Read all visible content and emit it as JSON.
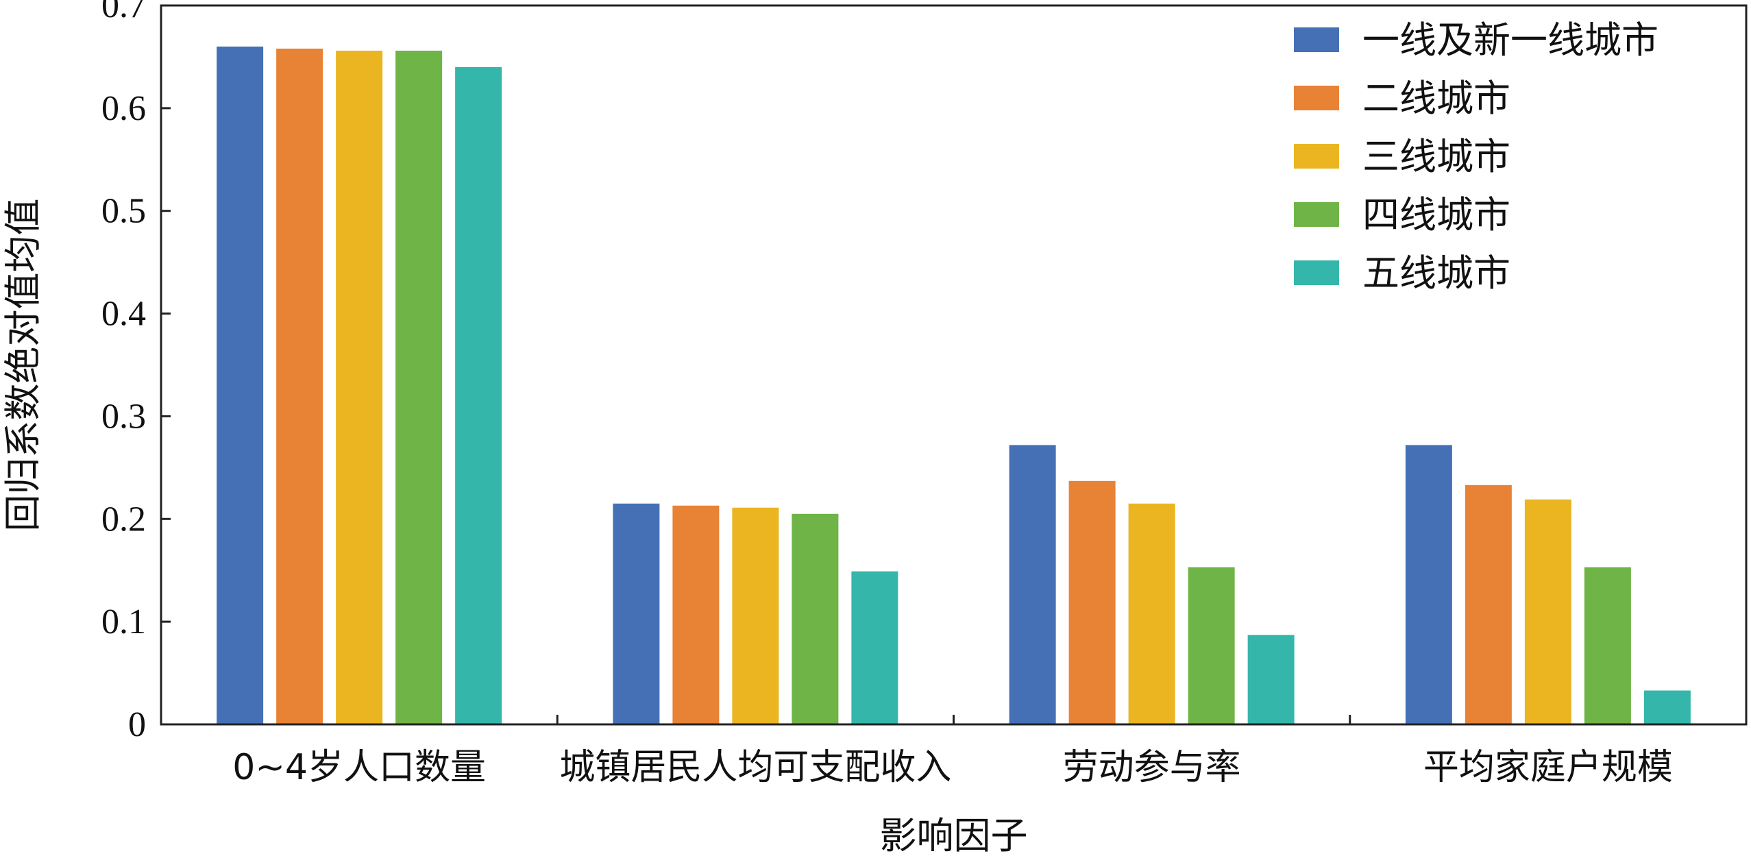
{
  "chart_data": {
    "type": "bar",
    "title": "",
    "xlabel": "影响因子",
    "ylabel": "回归系数绝对值均值",
    "ylim": [
      0,
      0.7
    ],
    "yticks": [
      0,
      0.1,
      0.2,
      0.3,
      0.4,
      0.5,
      0.6,
      0.7
    ],
    "ytick_labels": [
      "0",
      "0.1",
      "0.2",
      "0.3",
      "0.4",
      "0.5",
      "0.6",
      "0.7"
    ],
    "categories": [
      "0~4岁人口数量",
      "城镇居民人均可支配收入",
      "劳动参与率",
      "平均家庭户规模"
    ],
    "grid": false,
    "legend_position": "top-right",
    "series": [
      {
        "name": "一线及新一线城市",
        "color": "#4570b6",
        "values": [
          0.66,
          0.215,
          0.272,
          0.272
        ]
      },
      {
        "name": "二线城市",
        "color": "#e88235",
        "values": [
          0.658,
          0.213,
          0.237,
          0.233
        ]
      },
      {
        "name": "三线城市",
        "color": "#eab521",
        "values": [
          0.656,
          0.211,
          0.215,
          0.219
        ]
      },
      {
        "name": "四线城市",
        "color": "#6fb446",
        "values": [
          0.656,
          0.205,
          0.153,
          0.153
        ]
      },
      {
        "name": "五线城市",
        "color": "#35b6aa",
        "values": [
          0.64,
          0.149,
          0.087,
          0.033
        ]
      }
    ]
  }
}
